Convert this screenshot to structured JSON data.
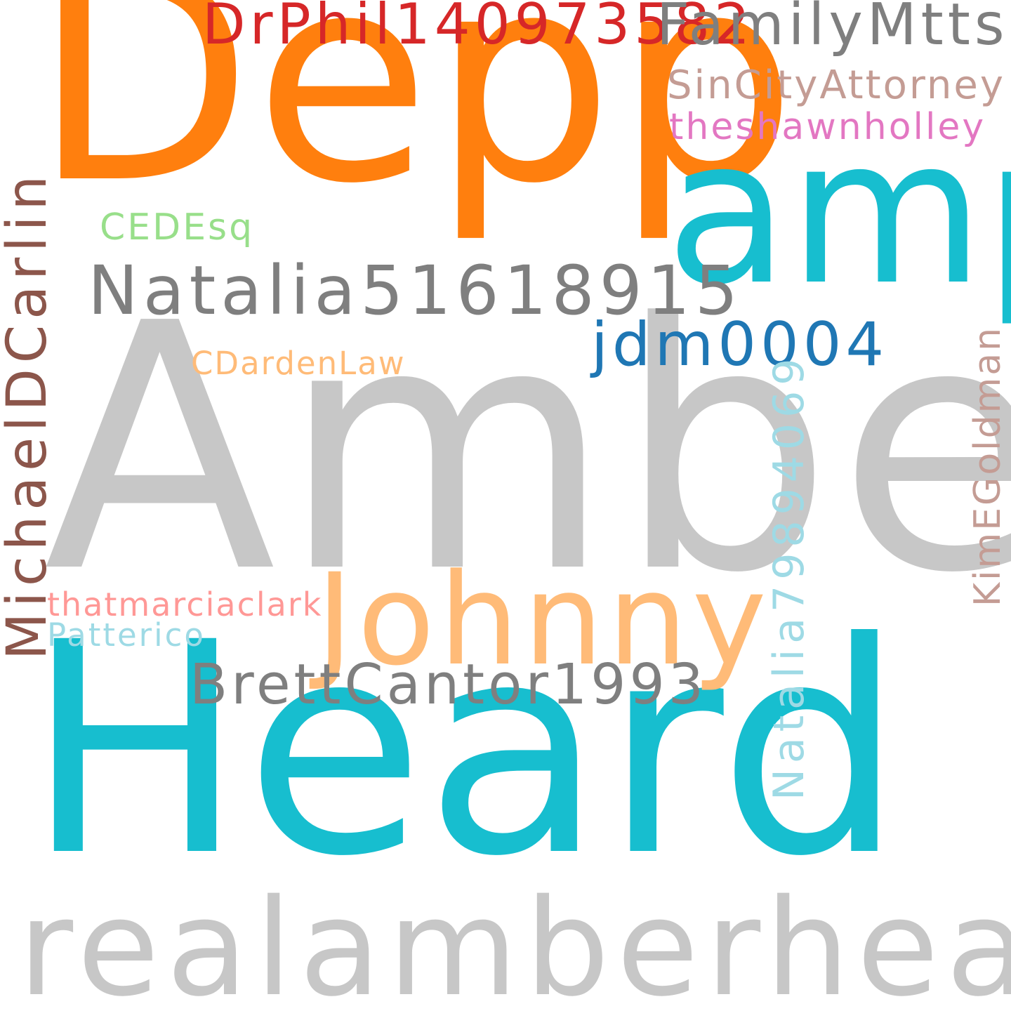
{
  "words": {
    "depp": {
      "text": "Depp",
      "color": "#ff7f0e"
    },
    "amp": {
      "text": "amp",
      "color": "#17becf"
    },
    "drphil": {
      "text": "DrPhil140973582",
      "color": "#d62728"
    },
    "familymtts": {
      "text": "FamilyMtts",
      "color": "#7f7f7f"
    },
    "sincity": {
      "text": "SinCityAttorney",
      "color": "#c49c94"
    },
    "shawn": {
      "text": "theshawnholley",
      "color": "#e377c2"
    },
    "cedesq": {
      "text": "CEDEsq",
      "color": "#98df8a"
    },
    "natalia1": {
      "text": "Natalia51618915",
      "color": "#7f7f7f"
    },
    "jdm": {
      "text": "jdm0004",
      "color": "#1f77b4"
    },
    "cdarden": {
      "text": "CDardenLaw",
      "color": "#ffbb78"
    },
    "amber": {
      "text": "Amber",
      "color": "#c7c7c7"
    },
    "johnny": {
      "text": "Johnny",
      "color": "#ffbb78"
    },
    "marcia": {
      "text": "thatmarciaclark",
      "color": "#ff9896"
    },
    "patterico": {
      "text": "Patterico",
      "color": "#9edae5"
    },
    "brett": {
      "text": "BrettCantor1993",
      "color": "#7f7f7f"
    },
    "heard": {
      "text": "Heard",
      "color": "#17becf"
    },
    "realamber": {
      "text": "realamberheard",
      "color": "#c7c7c7"
    },
    "michael": {
      "text": "MichaelDCarlin",
      "color": "#8c564b"
    },
    "natalia2": {
      "text": "Natalia79894069",
      "color": "#9edae5"
    },
    "kim": {
      "text": "KimEGoldman",
      "color": "#c49c94"
    }
  }
}
